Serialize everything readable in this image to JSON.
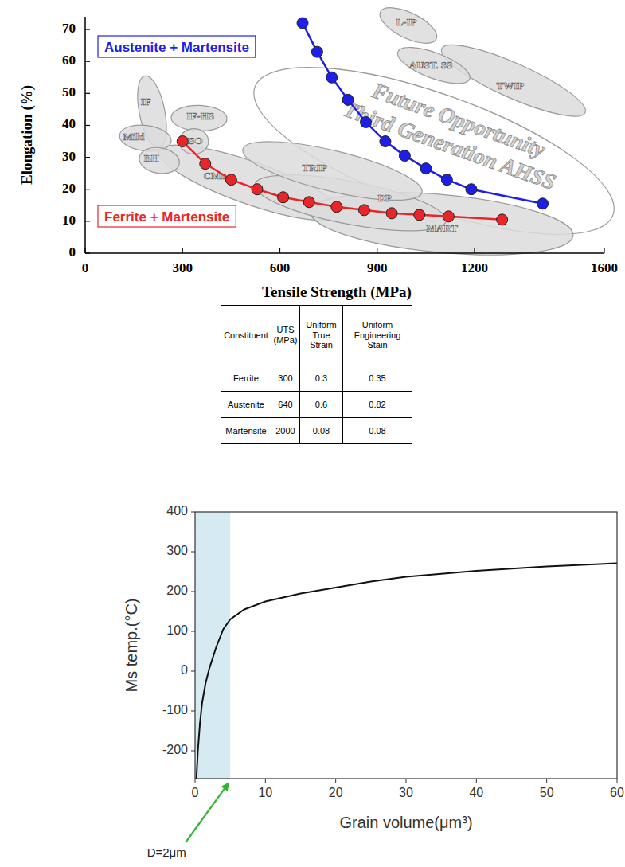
{
  "chart_data": [
    {
      "type": "line",
      "xlabel": "Tensile Strength (MPa)",
      "ylabel": "Elongation (%)",
      "xlim": [
        0,
        1600
      ],
      "ylim": [
        0,
        74
      ],
      "xticks": [
        0,
        300,
        600,
        900,
        1200,
        1600
      ],
      "yticks": [
        0,
        10,
        20,
        30,
        40,
        50,
        60,
        70
      ],
      "series": [
        {
          "name": "Ferrite + Martensite",
          "color": "#e8262a",
          "marker": "circle",
          "x": [
            300,
            370,
            450,
            530,
            610,
            690,
            775,
            860,
            945,
            1030,
            1120,
            1285
          ],
          "values": [
            35,
            28,
            23,
            20,
            17.5,
            16,
            14.5,
            13.5,
            12.5,
            12,
            11.5,
            10.5
          ]
        },
        {
          "name": "Austenite + Martensite",
          "color": "#1e1ee6",
          "marker": "circle",
          "x": [
            670,
            715,
            760,
            810,
            865,
            925,
            985,
            1050,
            1115,
            1190,
            1410
          ],
          "values": [
            72,
            63,
            55,
            48,
            41,
            35,
            30.5,
            26.5,
            23,
            20,
            15.5
          ]
        }
      ],
      "regions": [
        {
          "label": [
            "Future Opportunity",
            "Third Generation AHSS"
          ],
          "x": [
            523,
            1627
          ],
          "y": [
            52,
            12
          ],
          "at": [
            1135,
            37
          ]
        },
        {
          "label": "CMn",
          "x": [
            228,
            790
          ],
          "y": [
            32,
            12
          ],
          "at": [
            400,
            24
          ]
        },
        {
          "label": "MART",
          "x": [
            695,
            1504
          ],
          "y": [
            13,
            5.5
          ],
          "at": [
            1100,
            7.5
          ]
        },
        {
          "label": "DP",
          "x": [
            523,
            1112
          ],
          "y": [
            21.5,
            10
          ],
          "at": [
            923,
            17
          ]
        },
        {
          "label": "TRIP",
          "x": [
            486,
            1038
          ],
          "y": [
            32.5,
            19
          ],
          "at": [
            707,
            26.5
          ]
        },
        {
          "label": "IF",
          "x": [
            184,
            228
          ],
          "y": [
            55.5,
            33
          ],
          "at": [
            187,
            47
          ]
        },
        {
          "label": "IF-HS",
          "x": [
            265,
            437
          ],
          "y": [
            42.5,
            42
          ],
          "at": [
            355,
            42.5
          ]
        },
        {
          "label": "Mild",
          "x": [
            106,
            265
          ],
          "y": [
            37,
            35
          ],
          "at": [
            150,
            36
          ]
        },
        {
          "label": "BH",
          "x": [
            167,
            290
          ],
          "y": [
            30,
            28
          ],
          "at": [
            204,
            29.5
          ]
        },
        {
          "label": "ISO",
          "x": [
            290,
            380
          ],
          "y": [
            35,
            35
          ],
          "at": [
            335,
            35
          ]
        },
        {
          "label": "L-IP",
          "x": [
            910,
            1082
          ],
          "y": [
            75.5,
            67
          ],
          "at": [
            990,
            72
          ]
        },
        {
          "label": "TWIP",
          "x": [
            1099,
            1541
          ],
          "y": [
            64,
            44
          ],
          "at": [
            1310,
            52
          ]
        },
        {
          "label": "AUST. SS",
          "x": [
            964,
            1185
          ],
          "y": [
            63,
            54.5
          ],
          "at": [
            1065,
            58.5
          ]
        }
      ]
    },
    {
      "type": "line",
      "xlabel": "Grain volume(μm³)",
      "ylabel": "Ms temp.(°C)",
      "xlim": [
        0,
        60
      ],
      "ylim": [
        -270,
        400
      ],
      "xticks": [
        0,
        10,
        20,
        30,
        40,
        50,
        60
      ],
      "yticks": [
        -200,
        -100,
        0,
        100,
        200,
        300,
        400
      ],
      "highlight": [
        0,
        5
      ],
      "series": [
        {
          "color": "#111111",
          "x": [
            0.2,
            0.4,
            0.7,
            1,
            1.5,
            2,
            3,
            4,
            5,
            7,
            10,
            15,
            20,
            25,
            30,
            40,
            50,
            60
          ],
          "values": [
            -270,
            -200,
            -130,
            -80,
            -30,
            5,
            60,
            105,
            130,
            155,
            175,
            195,
            210,
            225,
            237,
            252,
            263,
            271
          ]
        }
      ],
      "annotations": [
        {
          "text": "D=2μm",
          "x": 5
        }
      ]
    }
  ],
  "table": {
    "header": [
      "Constituent",
      "UTS (MPa)",
      "Uniform True Strain",
      "Uniform Engineering Stain"
    ],
    "rows": [
      [
        "Ferrite",
        300,
        0.3,
        0.35
      ],
      [
        "Austenite",
        640,
        0.6,
        0.82
      ],
      [
        "Martensite",
        2000,
        0.08,
        0.08
      ]
    ]
  }
}
